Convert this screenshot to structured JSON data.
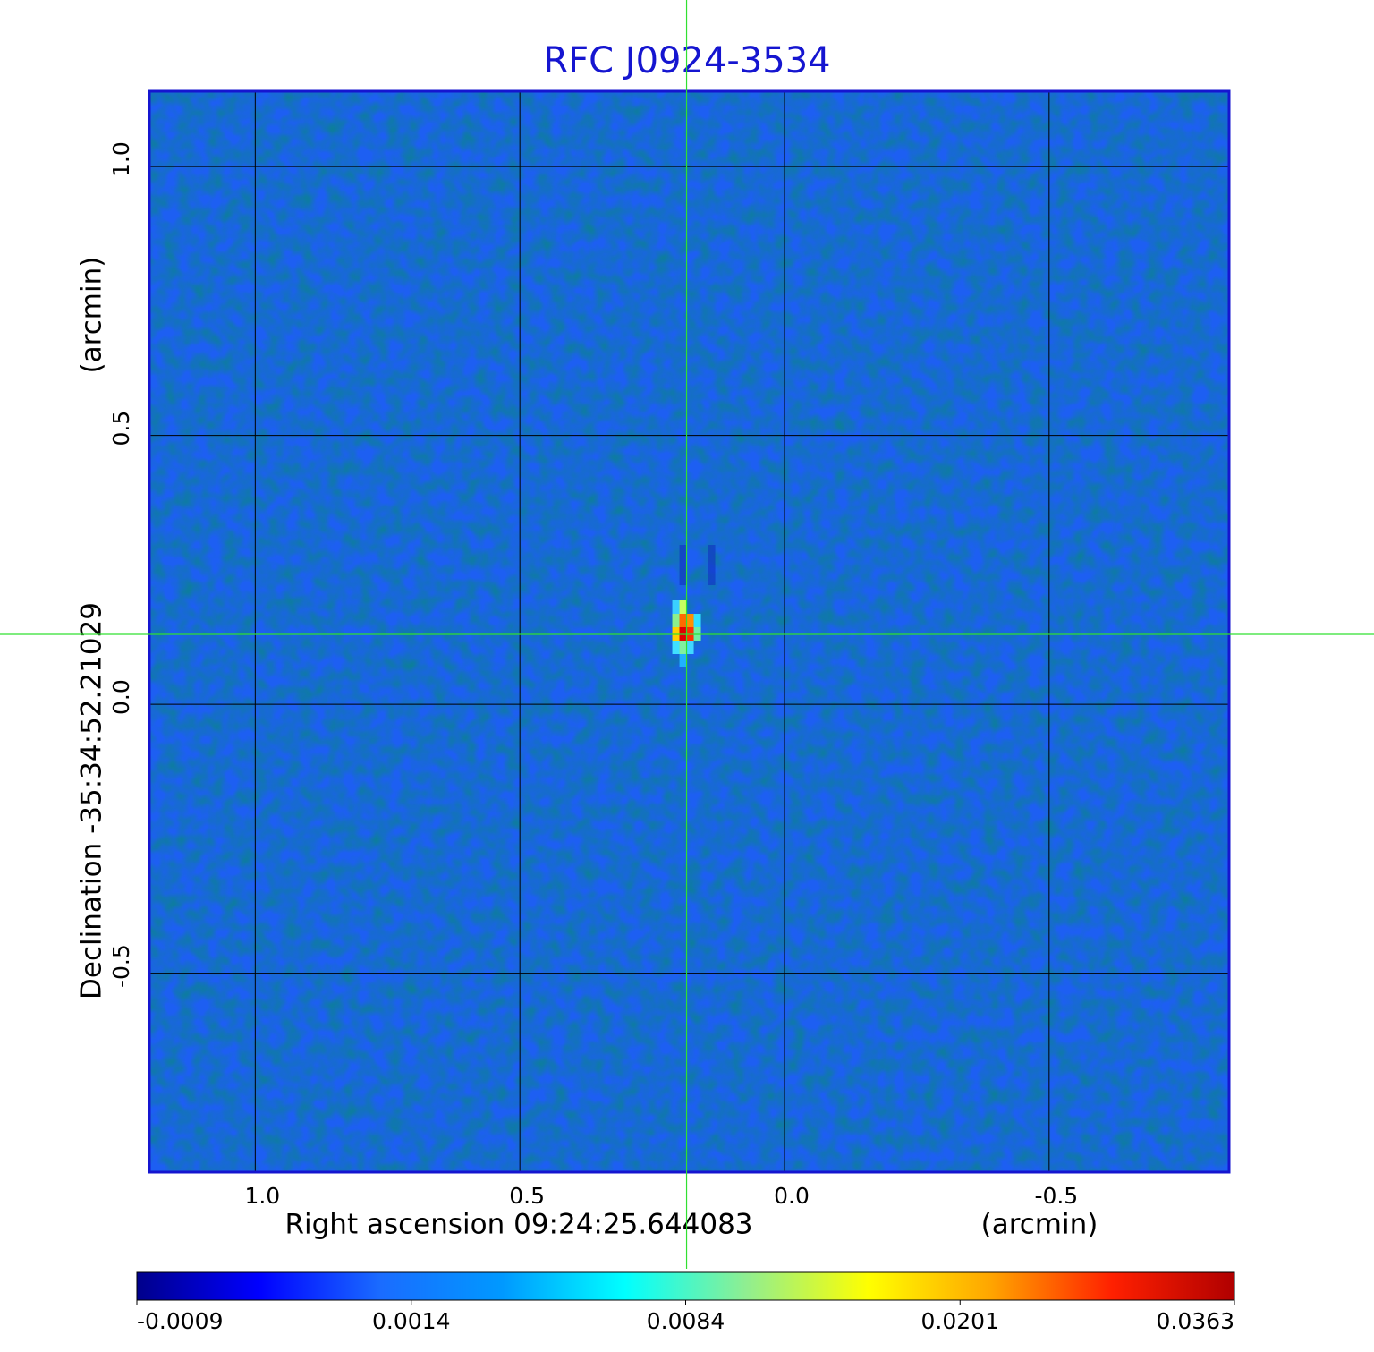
{
  "chart_data": {
    "type": "image",
    "title": "RFC J0924-3534",
    "x_label": "Right ascension  09:24:25.644083",
    "x_unit": "(arcmin)",
    "y_label": "Declination  -35:34:52.21029",
    "y_unit": "(arcmin)",
    "xlim": [
      1.2,
      -0.84
    ],
    "ylim": [
      -0.87,
      1.14
    ],
    "xticks": [
      {
        "value": 1,
        "label": "1.0"
      },
      0.5,
      {
        "value": 0,
        "label": "0.0"
      },
      -0.5
    ],
    "yticks": [
      {
        "value": 1,
        "label": "1.0"
      },
      0.5,
      {
        "value": 0,
        "label": "0.0"
      },
      -0.5
    ],
    "grid": true,
    "crosshair": {
      "x": 0.185,
      "y": 0.13,
      "color": "#30e030"
    },
    "frame_color": "#1515d0",
    "background_color": "#1d5ff2",
    "colorbar": {
      "ticks": [
        -0.0009,
        0.0014,
        0.0084,
        0.0201,
        0.0363
      ],
      "colormap": [
        "#00008b",
        "#0000ff",
        "#1a6cff",
        "#0099ff",
        "#00ffff",
        "#90ee90",
        "#ffff00",
        "#ffa500",
        "#ff2000",
        "#b00000"
      ]
    }
  }
}
